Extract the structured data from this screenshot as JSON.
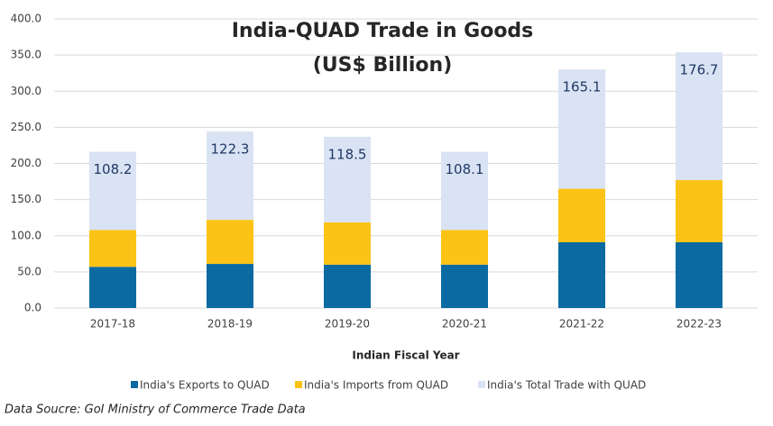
{
  "chart_data": {
    "type": "stacked_bar",
    "title_lines": [
      "India-QUAD Trade in Goods",
      "(US$ Billion)"
    ],
    "x_label": "Indian Fiscal Year",
    "source": "Data Soucre: GoI Ministry of Commerce Trade Data",
    "categories": [
      "2017-18",
      "2018-19",
      "2019-20",
      "2020-21",
      "2021-22",
      "2022-23"
    ],
    "series": [
      {
        "name": "India's Exports to QUAD",
        "color": "#0a6aa1",
        "values": [
          57,
          61,
          60,
          60,
          91,
          91
        ]
      },
      {
        "name": "India's Imports from QUAD",
        "color": "#fbc315",
        "values": [
          51,
          61,
          58.5,
          48,
          74,
          86
        ]
      },
      {
        "name": "India's Total Trade with QUAD",
        "color": "#dae3f3",
        "values": [
          108.2,
          122.3,
          118.5,
          108.1,
          165.1,
          176.7
        ],
        "labels": true
      }
    ],
    "ylim": [
      0,
      400
    ],
    "yticks": [
      {
        "value": 0,
        "label": "0.0"
      },
      {
        "value": 50,
        "label": "50.0"
      },
      {
        "value": 100,
        "label": "100.0"
      },
      {
        "value": 150,
        "label": "150.0"
      },
      {
        "value": 200,
        "label": "200.0"
      },
      {
        "value": 250,
        "label": "250.0"
      },
      {
        "value": 300,
        "label": "300.0"
      },
      {
        "value": 350,
        "label": "350.0"
      },
      {
        "value": 400,
        "label": "400.0"
      }
    ],
    "grid": true,
    "legend": "bottom"
  }
}
